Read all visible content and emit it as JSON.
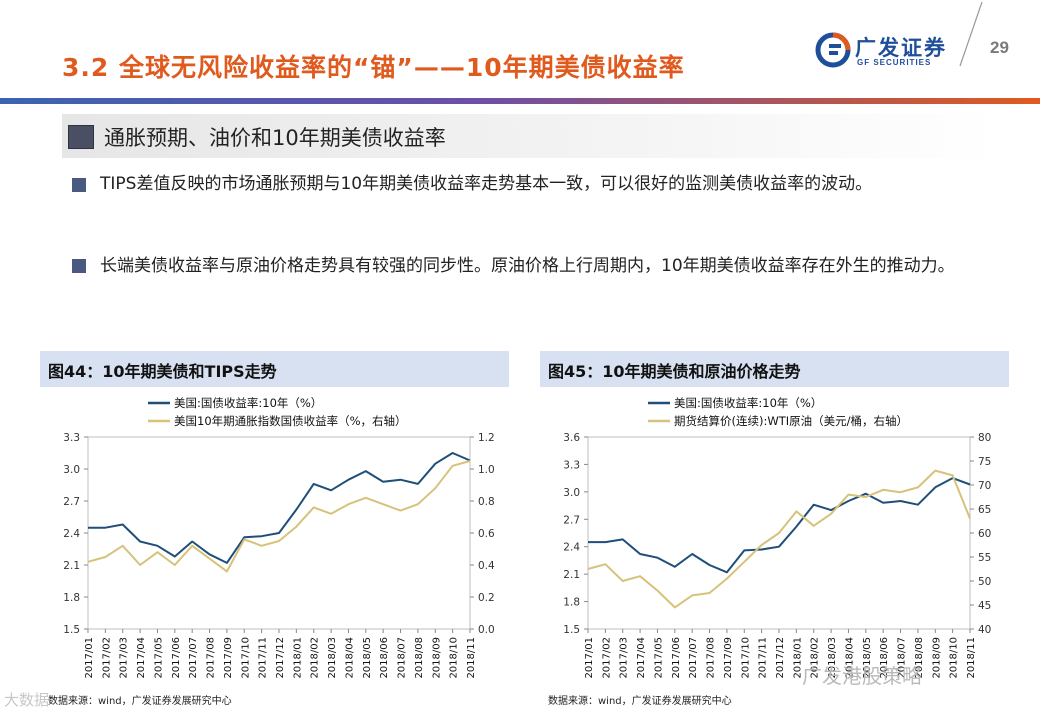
{
  "header": {
    "title": "3.2 全球无风险收益率的“锚”——10年期美债收益率",
    "logo_cn": "广发证券",
    "logo_en": "GF SECURITIES",
    "page_number": "29"
  },
  "section": {
    "heading": "通胀预期、油价和10年期美债收益率"
  },
  "bullets": [
    "TIPS差值反映的市场通胀预期与10年期美债收益率走势基本一致，可以很好的监测美债收益率的波动。",
    "长端美债收益率与原油价格走势具有较强的同步性。原油价格上行周期内，10年期美债收益率存在外生的推动力。"
  ],
  "watermark": {
    "text": "广发港股策略",
    "corner": "大数据"
  },
  "colors": {
    "series_a": "#1f4e79",
    "series_b": "#d7c27a",
    "accent": "#e05a1e",
    "panel_head": "#d8e1f1"
  },
  "chart_data": [
    {
      "type": "line",
      "panel_title": "图44：10年期美债和TIPS走势",
      "source": "数据来源：wind，广发证券发展研究中心",
      "categories": [
        "2017/01",
        "2017/02",
        "2017/03",
        "2017/04",
        "2017/05",
        "2017/06",
        "2017/07",
        "2017/08",
        "2017/09",
        "2017/10",
        "2017/11",
        "2017/12",
        "2018/01",
        "2018/02",
        "2018/03",
        "2018/04",
        "2018/05",
        "2018/06",
        "2018/07",
        "2018/08",
        "2018/09",
        "2018/10",
        "2018/11"
      ],
      "y_left": {
        "min": 1.5,
        "max": 3.3,
        "ticks": [
          "1.5",
          "1.8",
          "2.1",
          "2.4",
          "2.7",
          "3.0",
          "3.3"
        ]
      },
      "y_right": {
        "min": 0.0,
        "max": 1.2,
        "ticks": [
          "0.0",
          "0.2",
          "0.4",
          "0.6",
          "0.8",
          "1.0",
          "1.2"
        ]
      },
      "series": [
        {
          "name": "美国:国债收益率:10年（%）",
          "axis": "left",
          "values": [
            2.45,
            2.45,
            2.48,
            2.32,
            2.28,
            2.18,
            2.32,
            2.2,
            2.12,
            2.36,
            2.37,
            2.4,
            2.62,
            2.86,
            2.8,
            2.9,
            2.98,
            2.88,
            2.9,
            2.86,
            3.05,
            3.15,
            3.08
          ]
        },
        {
          "name": "美国10年期通胀指数国债收益率（%，右轴）",
          "axis": "right",
          "values": [
            0.42,
            0.45,
            0.52,
            0.4,
            0.48,
            0.4,
            0.52,
            0.44,
            0.36,
            0.56,
            0.52,
            0.55,
            0.64,
            0.76,
            0.72,
            0.78,
            0.82,
            0.78,
            0.74,
            0.78,
            0.88,
            1.02,
            1.05
          ]
        }
      ]
    },
    {
      "type": "line",
      "panel_title": "图45：10年期美债和原油价格走势",
      "source": "数据来源：wind，广发证券发展研究中心",
      "categories": [
        "2017/01",
        "2017/02",
        "2017/03",
        "2017/04",
        "2017/05",
        "2017/06",
        "2017/07",
        "2017/08",
        "2017/09",
        "2017/10",
        "2017/11",
        "2017/12",
        "2018/01",
        "2018/02",
        "2018/03",
        "2018/04",
        "2018/05",
        "2018/06",
        "2018/07",
        "2018/08",
        "2018/09",
        "2018/10",
        "2018/11"
      ],
      "y_left": {
        "min": 1.5,
        "max": 3.6,
        "ticks": [
          "1.5",
          "1.8",
          "2.1",
          "2.4",
          "2.7",
          "3.0",
          "3.3",
          "3.6"
        ]
      },
      "y_right": {
        "min": 40,
        "max": 80,
        "ticks": [
          "40",
          "45",
          "50",
          "55",
          "60",
          "65",
          "70",
          "75",
          "80"
        ]
      },
      "series": [
        {
          "name": "美国:国债收益率:10年（%）",
          "axis": "left",
          "values": [
            2.45,
            2.45,
            2.48,
            2.32,
            2.28,
            2.18,
            2.32,
            2.2,
            2.12,
            2.36,
            2.37,
            2.4,
            2.62,
            2.86,
            2.8,
            2.9,
            2.98,
            2.88,
            2.9,
            2.86,
            3.05,
            3.15,
            3.08
          ]
        },
        {
          "name": "期货结算价(连续):WTI原油（美元/桶，右轴）",
          "axis": "right",
          "values": [
            52.5,
            53.5,
            50.0,
            51.0,
            48.0,
            44.5,
            47.0,
            47.5,
            50.5,
            54.0,
            57.5,
            60.0,
            64.5,
            61.5,
            64.0,
            68.0,
            67.5,
            69.0,
            68.5,
            69.5,
            73.0,
            72.0,
            63.0
          ]
        }
      ]
    }
  ]
}
